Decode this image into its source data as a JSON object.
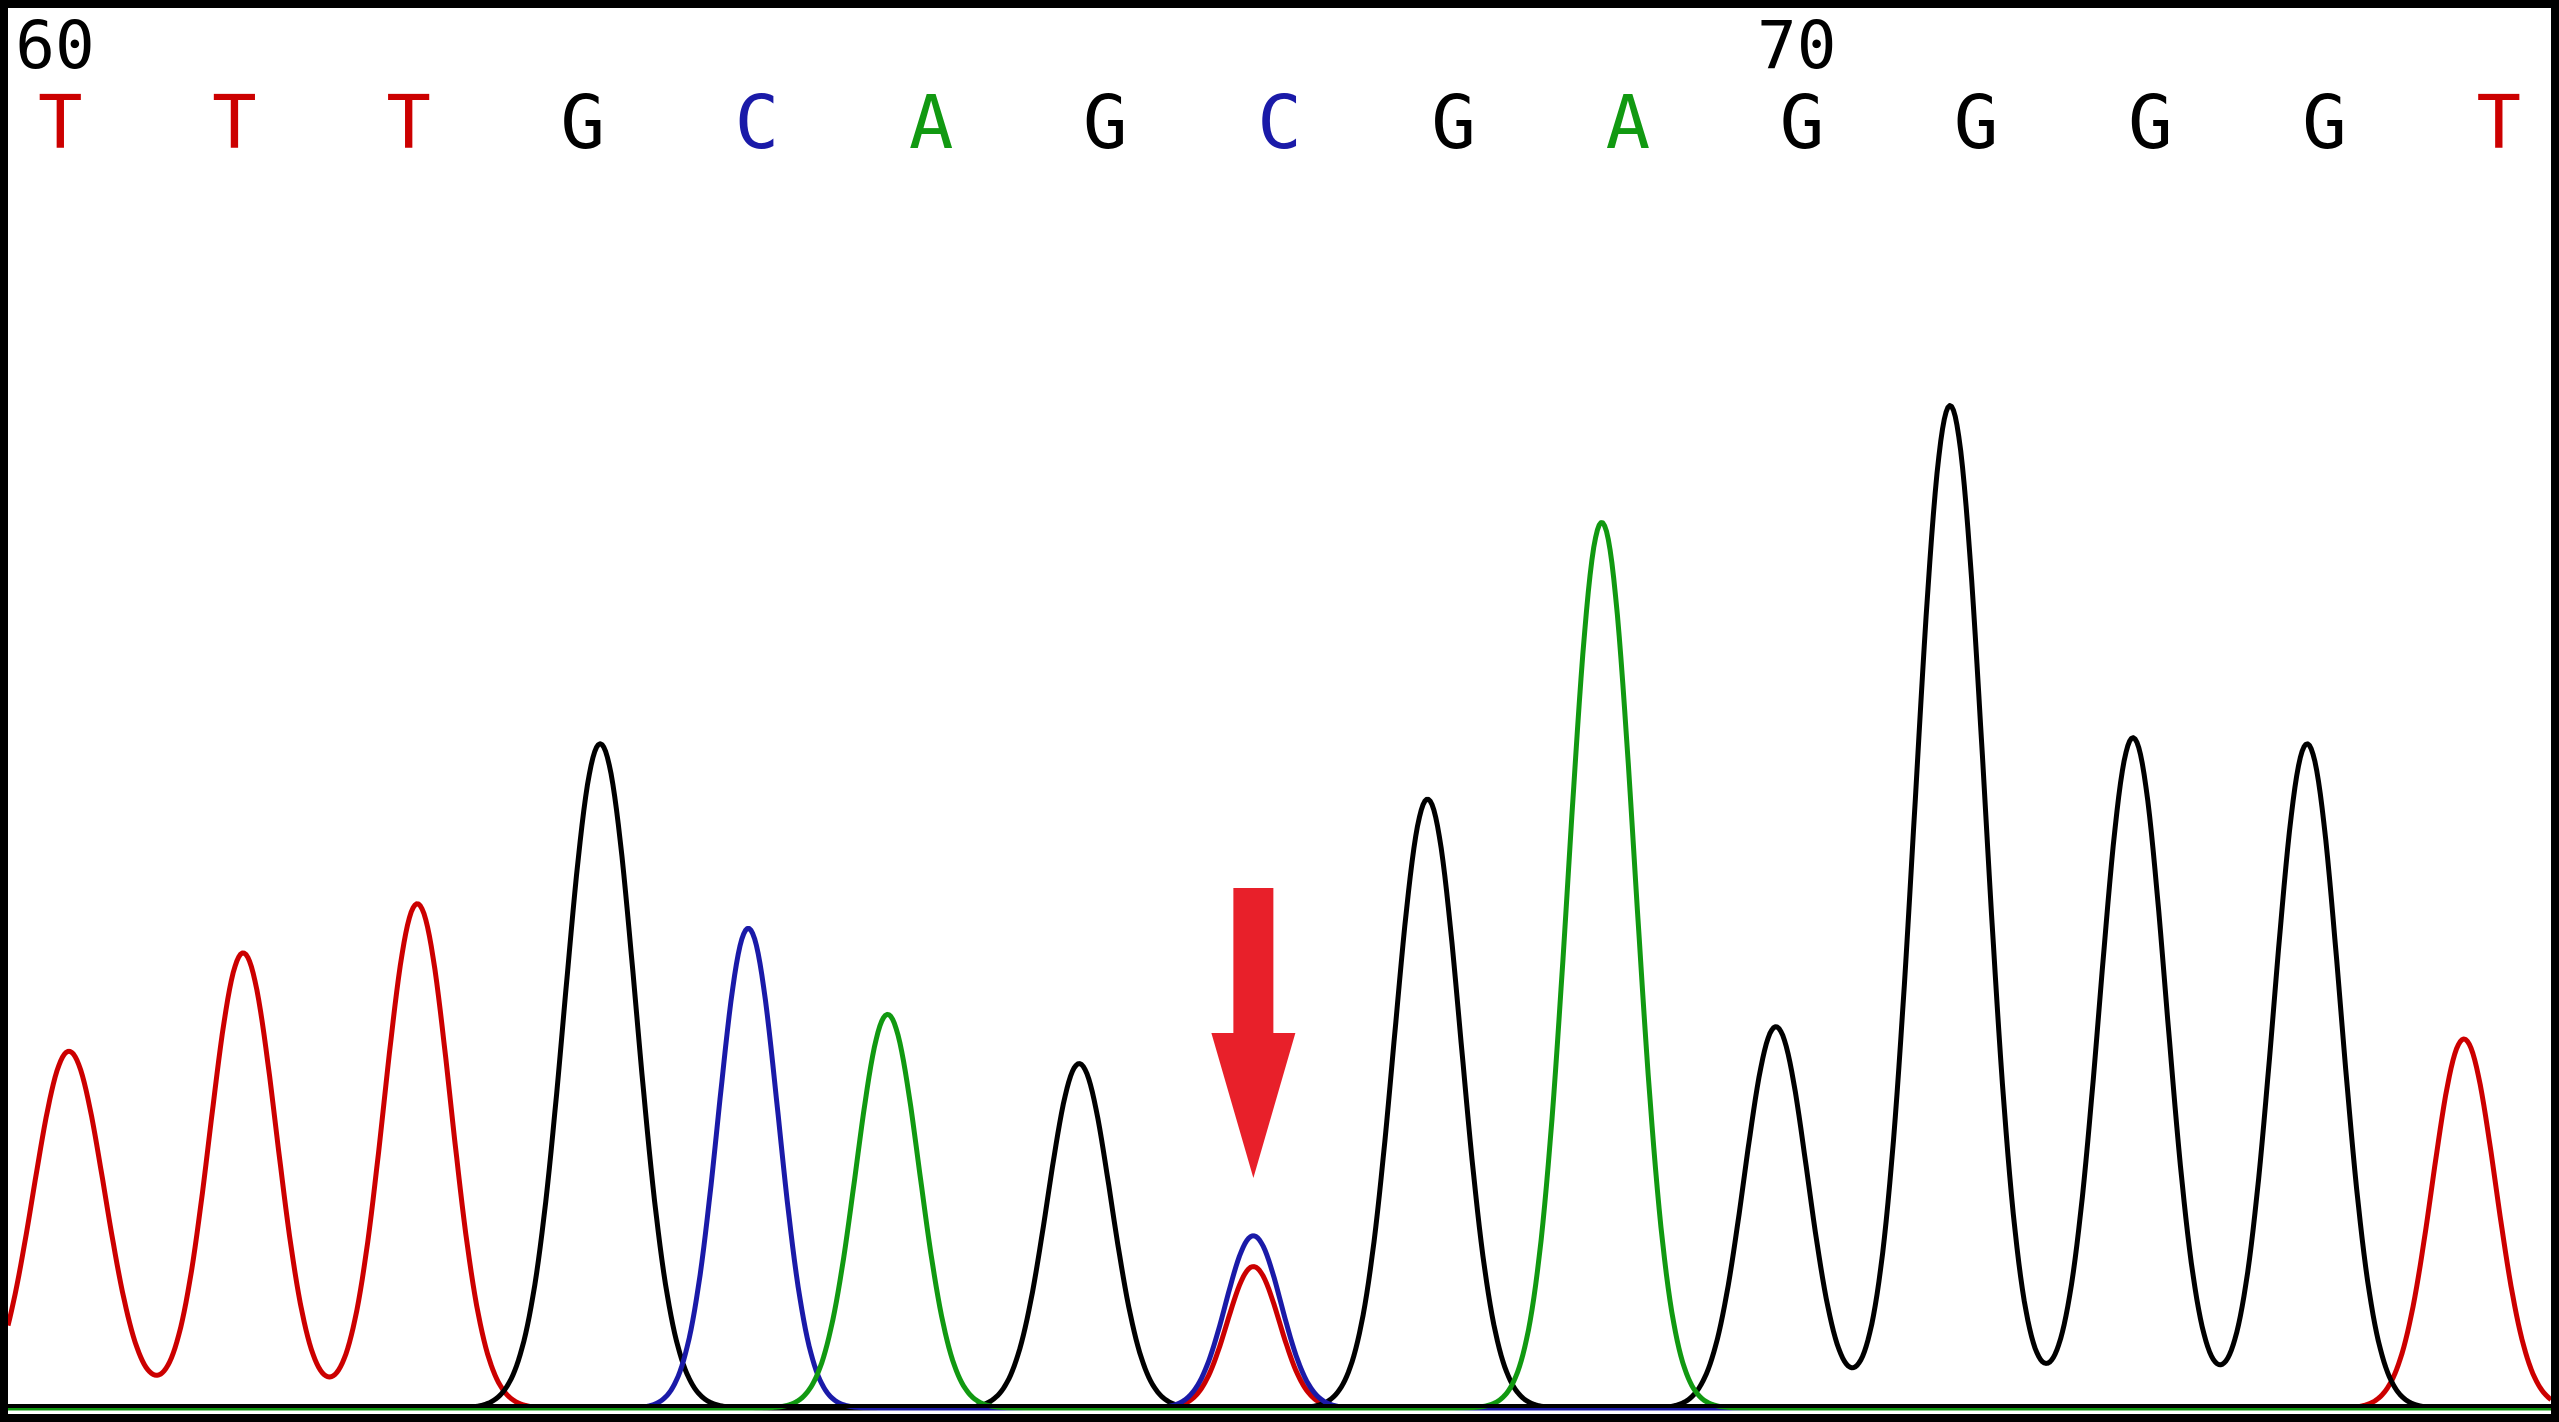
{
  "chart_data": {
    "type": "line",
    "x_range": [
      59.7,
      74.3
    ],
    "y_range": [
      0,
      1000
    ],
    "position_labels": [
      {
        "x": 60,
        "label": "60"
      },
      {
        "x": 70,
        "label": "70"
      }
    ],
    "bases": [
      {
        "x": 60,
        "base": "T"
      },
      {
        "x": 61,
        "base": "T"
      },
      {
        "x": 62,
        "base": "T"
      },
      {
        "x": 63,
        "base": "G"
      },
      {
        "x": 64,
        "base": "C"
      },
      {
        "x": 65,
        "base": "A"
      },
      {
        "x": 66,
        "base": "G"
      },
      {
        "x": 67,
        "base": "C"
      },
      {
        "x": 68,
        "base": "G"
      },
      {
        "x": 69,
        "base": "A"
      },
      {
        "x": 70,
        "base": "G"
      },
      {
        "x": 71,
        "base": "G"
      },
      {
        "x": 72,
        "base": "G"
      },
      {
        "x": 73,
        "base": "G"
      },
      {
        "x": 74,
        "base": "T"
      }
    ],
    "colors": {
      "T": "#cc0000",
      "G": "#000000",
      "C": "#1a1aa8",
      "A": "#119911"
    },
    "peaks": [
      {
        "base": "T",
        "x": 60.05,
        "height": 290,
        "width": 0.45
      },
      {
        "base": "T",
        "x": 61.05,
        "height": 370,
        "width": 0.42
      },
      {
        "base": "T",
        "x": 62.05,
        "height": 410,
        "width": 0.42
      },
      {
        "base": "G",
        "x": 63.1,
        "height": 540,
        "width": 0.45
      },
      {
        "base": "C",
        "x": 63.95,
        "height": 390,
        "width": 0.38
      },
      {
        "base": "A",
        "x": 64.75,
        "height": 320,
        "width": 0.4
      },
      {
        "base": "G",
        "x": 65.85,
        "height": 280,
        "width": 0.4
      },
      {
        "base": "C",
        "x": 66.85,
        "height": 140,
        "width": 0.35
      },
      {
        "base": "T",
        "x": 66.85,
        "height": 115,
        "width": 0.33
      },
      {
        "base": "G",
        "x": 67.85,
        "height": 495,
        "width": 0.42
      },
      {
        "base": "A",
        "x": 68.85,
        "height": 720,
        "width": 0.42
      },
      {
        "base": "G",
        "x": 69.85,
        "height": 310,
        "width": 0.4
      },
      {
        "base": "G",
        "x": 70.85,
        "height": 815,
        "width": 0.44
      },
      {
        "base": "G",
        "x": 71.9,
        "height": 545,
        "width": 0.42
      },
      {
        "base": "G",
        "x": 72.9,
        "height": 540,
        "width": 0.42
      },
      {
        "base": "T",
        "x": 73.8,
        "height": 300,
        "width": 0.4
      }
    ],
    "annotation": {
      "type": "arrow",
      "x": 66.85,
      "color": "#e8202a"
    }
  }
}
